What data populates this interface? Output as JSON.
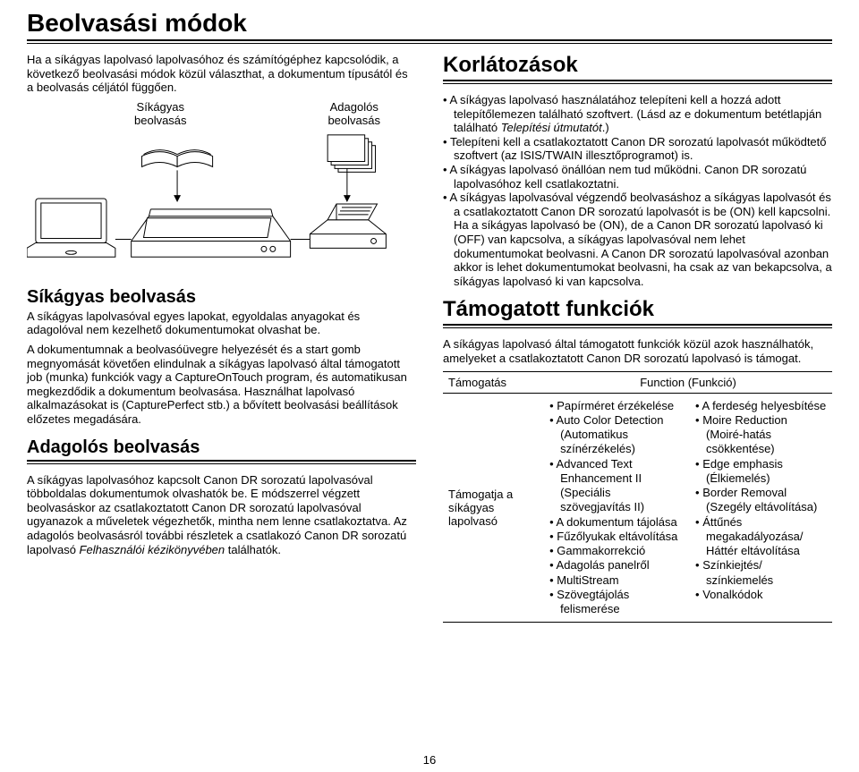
{
  "title": "Beolvasási módok",
  "intro": "Ha a síkágyas lapolvasó lapolvasóhoz és számítógéphez kapcsolódik, a következő beolvasási módok közül választhat, a dokumentum típusától és a beolvasás céljától függően.",
  "diagram_labels": {
    "left": "Síkágyas\nbeolvasás",
    "right": "Adagolós\nbeolvasás"
  },
  "left_sections": [
    {
      "heading": "Síkágyas beolvasás",
      "paras": [
        "A síkágyas lapolvasóval egyes lapokat, egyoldalas anyagokat és adagolóval nem kezelhető dokumentumokat olvashat be.",
        "A dokumentumnak a beolvasóüvegre helyezését és a start gomb megnyomását követően elindulnak a síkágyas lapolvasó által támogatott job (munka) funkciók vagy a CaptureOnTouch program, és automatikusan megkezdődik a dokumentum beolvasása. Használhat lapolvasó alkalmazásokat is (CapturePerfect stb.) a bővített beolvasási beállítások előzetes megadására."
      ]
    },
    {
      "heading": "Adagolós beolvasás",
      "paras": [
        "A síkágyas lapolvasóhoz kapcsolt Canon DR sorozatú lapolvasóval többoldalas dokumentumok olvashatók be. E módszerrel végzett beolvasáskor az csatlakoztatott Canon DR sorozatú lapolvasóval ugyanazok a műveletek végezhetők, mintha nem lenne csatlakoztatva. Az adagolós beolvasásról további részletek a csatlakozó Canon DR sorozatú lapolvasó Felhasználói kézikönyvében találhatók."
      ],
      "italic_tail": "Felhasználói kézikönyvében"
    }
  ],
  "right_sections": {
    "korl_heading": "Korlátozások",
    "korl_bullets_raw": [
      "A síkágyas lapolvasó használatához telepíteni kell a hozzá adott telepítőlemezen található szoftvert. (Lásd az e dokumentum betétlapján található <i>Telepítési útmutatót</i>.)",
      "Telepíteni kell a csatlakoztatott Canon DR sorozatú lapolvasót működtető szoftvert (az ISIS/TWAIN illesztőprogramot) is.",
      "A síkágyas lapolvasó önállóan nem tud működni. Canon DR sorozatú lapolvasóhoz kell csatlakoztatni.",
      "A síkágyas lapolvasóval végzendő beolvasáshoz a síkágyas lapolvasót és a csatlakoztatott Canon DR sorozatú lapolvasót is be (ON) kell kapcsolni. Ha a síkágyas lapolvasó be (ON), de a Canon DR sorozatú lapolvasó ki (OFF) van kapcsolva, a síkágyas lapolvasóval nem lehet dokumentumokat beolvasni. A Canon DR sorozatú lapolvasóval azonban akkor is lehet dokumentumokat beolvasni, ha csak az van bekapcsolva, a síkágyas lapolvasó ki van kapcsolva."
    ],
    "func_heading": "Támogatott funkciók",
    "func_intro": "A síkágyas lapolvasó által támogatott funkciók közül azok használhatók, amelyeket a csatlakoztatott Canon DR sorozatú lapolvasó is támogat.",
    "func_table": {
      "headers": [
        "Támogatás",
        "Function (Funkció)"
      ],
      "row_label": "Támogatja a síkágyas lapolvasó",
      "col_a": [
        "Papírméret érzékelése",
        "Auto Color Detection (Automatikus színérzékelés)",
        "Advanced Text Enhancement II (Speciális szövegjavítás II)",
        "A dokumentum tájolása",
        "Fűzőlyukak eltávolítása",
        "Gammakorrekció",
        "Adagolás panelről",
        "MultiStream",
        "Szövegtájolás felismerése"
      ],
      "col_b": [
        "A ferdeség helyesbítése",
        "Moire Reduction (Moiré-hatás csökkentése)",
        "Edge emphasis (Élkiemelés)",
        "Border Removal (Szegély eltávolítása)",
        "Áttűnés megakadályozása/ Háttér eltávolítása",
        "Színkiejtés/ színkiemelés",
        "Vonalkódok"
      ]
    }
  },
  "page_number": "16",
  "colors": {
    "text": "#000000",
    "bg": "#ffffff",
    "rule": "#000000",
    "svg_stroke": "#000000",
    "svg_fill": "#ffffff"
  }
}
